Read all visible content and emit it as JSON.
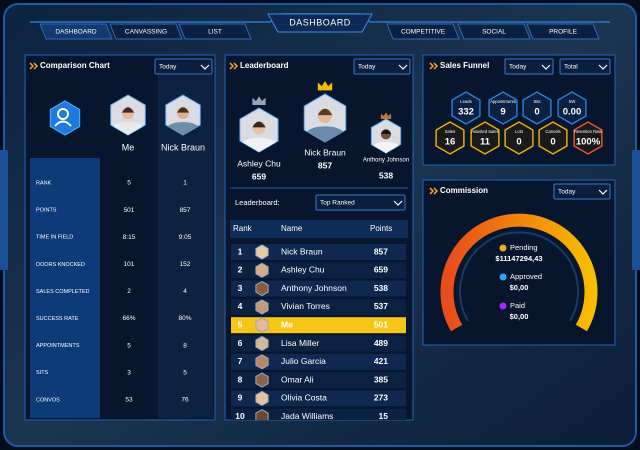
{
  "nav": {
    "title": "DASHBOARD",
    "tabs_left": [
      "DASHBOARD",
      "CANVASSING",
      "LIST"
    ],
    "tabs_right": [
      "COMPETITIVE",
      "SOCIAL",
      "PROFILE"
    ]
  },
  "comparison": {
    "title": "Comparison Chart",
    "period": "Today",
    "players": [
      "Me",
      "Nick Braun"
    ],
    "rows": [
      {
        "label": "RANK",
        "values": [
          "5",
          "1"
        ]
      },
      {
        "label": "POINTS",
        "values": [
          "501",
          "857"
        ]
      },
      {
        "label": "TIME IN FIELD",
        "values": [
          "8:15",
          "9:05"
        ]
      },
      {
        "label": "DOORS KNOCKED",
        "values": [
          "101",
          "152"
        ]
      },
      {
        "label": "SALES COMPLETED",
        "values": [
          "2",
          "4"
        ]
      },
      {
        "label": "SUCCESS RATE",
        "values": [
          "66%",
          "80%"
        ]
      },
      {
        "label": "APPOINTMENTS",
        "values": [
          "5",
          "8"
        ]
      },
      {
        "label": "SITS",
        "values": [
          "3",
          "5"
        ]
      },
      {
        "label": "CONVOS",
        "values": [
          "53",
          "76"
        ]
      }
    ]
  },
  "leaderboard": {
    "title": "Leaderboard",
    "period": "Today",
    "podium": [
      {
        "name": "Ashley Chu",
        "points": "659"
      },
      {
        "name": "Nick Braun",
        "points": "857"
      },
      {
        "name": "Anthony Johnson",
        "points": "538"
      }
    ],
    "filter_label": "Leaderboard:",
    "filter": "Top Ranked",
    "columns": [
      "Rank",
      "Name",
      "Points"
    ],
    "rows": [
      [
        "1",
        "Nick Braun",
        "857"
      ],
      [
        "2",
        "Ashley Chu",
        "659"
      ],
      [
        "3",
        "Anthony Johnson",
        "538"
      ],
      [
        "4",
        "Vivian Torres",
        "537"
      ],
      [
        "5",
        "Me",
        "501"
      ],
      [
        "6",
        "Lisa Miller",
        "489"
      ],
      [
        "7",
        "Julio Garcia",
        "421"
      ],
      [
        "8",
        "Omar Ali",
        "385"
      ],
      [
        "9",
        "Olivia Costa",
        "273"
      ],
      [
        "10",
        "Jada Williams",
        "15"
      ]
    ]
  },
  "sales_funnel": {
    "title": "Sales Funnel",
    "period": "Today",
    "scope": "Total",
    "top": [
      {
        "label": "Leads",
        "value": "332"
      },
      {
        "label": "Appointments",
        "value": "9"
      },
      {
        "label": "Sits",
        "value": "0"
      },
      {
        "label": "SW",
        "value": "0.00"
      }
    ],
    "bottom": [
      {
        "label": "Sales",
        "value": "16"
      },
      {
        "label": "Assisted Sales",
        "value": "11"
      },
      {
        "label": "Lost",
        "value": "0"
      },
      {
        "label": "Cancels",
        "value": "0"
      },
      {
        "label": "Retention Rate",
        "value": "100%"
      }
    ]
  },
  "commission": {
    "title": "Commission",
    "period": "Today",
    "items": [
      {
        "label": "Pending",
        "value": "$11147294,43"
      },
      {
        "label": "Approved",
        "value": "$0,00"
      },
      {
        "label": "Paid",
        "value": "$0,00"
      }
    ]
  }
}
